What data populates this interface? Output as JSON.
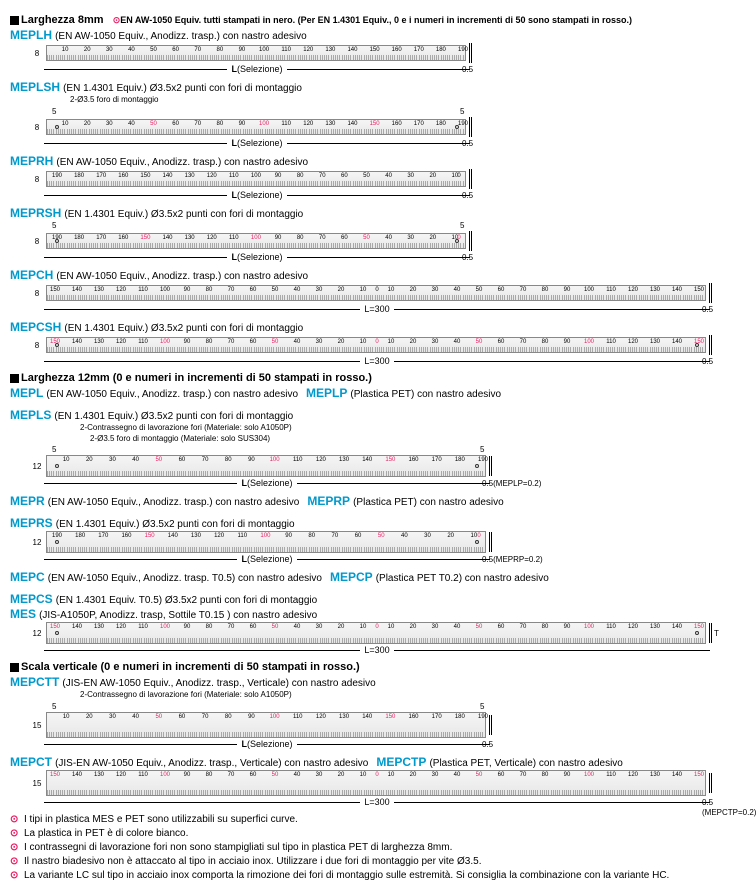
{
  "header8": {
    "title": "Larghezza 8mm",
    "note": "EN AW-1050 Equiv. tutti stampati in nero. (Per EN 1.4301 Equiv., 0 e i numeri in incrementi di 50 sono stampati in rosso.)"
  },
  "header12": {
    "title": "Larghezza 12mm (0 e numeri in incrementi di 50 stampati in rosso.)"
  },
  "headerVert": {
    "title": "Scala verticale (0 e numeri in incrementi di 50 stampati in rosso.)"
  },
  "products8": [
    {
      "code": "MEPLH",
      "desc": "(EN AW-1050 Equiv., Anodizz. trasp.) con nastro adesivo",
      "dir": "ltr",
      "len": 190,
      "dimLabel": "L(Selezione)",
      "thick": "0.5",
      "h": "8"
    },
    {
      "code": "MEPLSH",
      "desc": "(EN 1.4301 Equiv.) Ø3.5x2 punti con fori di montaggio",
      "dir": "ltr",
      "len": 190,
      "dimLabel": "L(Selezione)",
      "thick": "0.5",
      "h": "8",
      "callout": "2-Ø3.5 foro di montaggio",
      "brackets": true,
      "holes": true,
      "red50": true
    },
    {
      "code": "MEPRH",
      "desc": "(EN AW-1050 Equiv., Anodizz. trasp.) con nastro adesivo",
      "dir": "rtl",
      "len": 190,
      "dimLabel": "L(Selezione)",
      "thick": "0.5",
      "h": "8"
    },
    {
      "code": "MEPRSH",
      "desc": "(EN 1.4301 Equiv.) Ø3.5x2 punti con fori di montaggio",
      "dir": "rtl",
      "len": 190,
      "dimLabel": "L(Selezione)",
      "thick": "0.5",
      "h": "8",
      "brackets": true,
      "holes": true,
      "red50": true
    },
    {
      "code": "MEPCH",
      "desc": "(EN AW-1050 Equiv., Anodizz. trasp.) con nastro adesivo",
      "dir": "center",
      "len": 300,
      "dimLabel": "L=300",
      "thick": "0.5",
      "h": "8"
    },
    {
      "code": "MEPCSH",
      "desc": "(EN 1.4301 Equiv.) Ø3.5x2 punti con fori di montaggio",
      "dir": "center",
      "len": 300,
      "dimLabel": "L=300",
      "thick": "0.5",
      "h": "8",
      "holes": true,
      "red50": true
    }
  ],
  "products12": [
    {
      "codes": [
        {
          "code": "MEPL",
          "desc": "(EN AW-1050 Equiv., Anodizz. trasp.) con nastro adesivo"
        },
        {
          "code": "MEPLP",
          "desc": "(Plastica PET) con nastro adesivo"
        },
        {
          "code": "MEPLS",
          "desc": "(EN 1.4301 Equiv.) Ø3.5x2 punti con fori di montaggio"
        }
      ],
      "dir": "ltr",
      "len": 190,
      "dimLabel": "L(Selezione)",
      "thick": "0.5(MEPLP=0.2)",
      "h": "12",
      "callout1": "2-Contrassegno di lavorazione fori (Materiale: solo A1050P)",
      "callout2": "2-Ø3.5 foro di montaggio (Materiale: solo SUS304)",
      "brackets": true,
      "holes": true,
      "red50": true,
      "rulerClass": "ruler-12"
    },
    {
      "codes": [
        {
          "code": "MEPR",
          "desc": "(EN AW-1050 Equiv., Anodizz. trasp.) con nastro adesivo"
        },
        {
          "code": "MEPRP",
          "desc": "(Plastica PET) con nastro adesivo"
        },
        {
          "code": "MEPRS",
          "desc": "(EN 1.4301 Equiv.) Ø3.5x2 punti con fori di montaggio"
        }
      ],
      "dir": "rtl",
      "len": 190,
      "dimLabel": "L(Selezione)",
      "thick": "0.5(MEPRP=0.2)",
      "h": "12",
      "holes": true,
      "red50": true,
      "rulerClass": "ruler-12"
    },
    {
      "codes": [
        {
          "code": "MEPC",
          "desc": "(EN AW-1050 Equiv., Anodizz. trasp. T0.5) con nastro adesivo"
        },
        {
          "code": "MEPCP",
          "desc": "(Plastica PET T0.2) con nastro adesivo"
        },
        {
          "code": "MEPCS",
          "desc": "(EN 1.4301 Equiv. T0.5) Ø3.5x2 punti con fori di montaggio"
        }
      ],
      "extraLine": {
        "code": "MES",
        "desc": "(JIS-A1050P, Anodizz. trasp, Sottile T0.15 ) con nastro adesivo"
      },
      "dir": "center",
      "len": 300,
      "dimLabel": "L=300",
      "thick": "T",
      "h": "12",
      "holes": true,
      "red50": true,
      "rulerClass": "ruler-12",
      "showT": true
    }
  ],
  "productsVert": [
    {
      "codes": [
        {
          "code": "MEPCTT",
          "desc": "(JIS-EN AW-1050 Equiv., Anodizz. trasp., Verticale) con nastro adesivo"
        }
      ],
      "dir": "ltr",
      "len": 190,
      "dimLabel": "L(Selezione)",
      "thick": "0.5",
      "h": "15",
      "callout1": "2-Contrassegno di lavorazione fori (Materiale: solo A1050P)",
      "brackets": true,
      "red50": true,
      "rulerClass": "ruler-15",
      "vertical": true
    },
    {
      "codes": [
        {
          "code": "MEPCT",
          "desc": "(JIS-EN AW-1050 Equiv., Anodizz. trasp., Verticale) con nastro adesivo"
        },
        {
          "code": "MEPCTP",
          "desc": "(Plastica PET, Verticale) con nastro adesivo"
        }
      ],
      "dir": "center",
      "len": 300,
      "dimLabel": "L=300",
      "thick": "0.5",
      "thickExtra": "(MEPCTP=0.2)",
      "h": "15",
      "red50": true,
      "rulerClass": "ruler-15",
      "vertical": true
    }
  ],
  "notes": [
    "I tipi in plastica MES e PET sono utilizzabili su superfici curve.",
    "La plastica in PET è di colore bianco.",
    "I contrassegni di lavorazione fori non sono stampigliati sul tipo in plastica PET di larghezza 8mm.",
    "Il nastro biadesivo non è attaccato al tipo in acciaio inox. Utilizzare i due fori di montaggio per vite Ø3.5.",
    "La variante LC sul tipo in acciaio inox comporta la rimozione dei fori di montaggio sulle estremità. Si consiglia la combinazione con la variante HC."
  ],
  "colors": {
    "codeColor": "#0099cc",
    "redColor": "#e91e63",
    "rulerBg": "#eeeeee"
  }
}
